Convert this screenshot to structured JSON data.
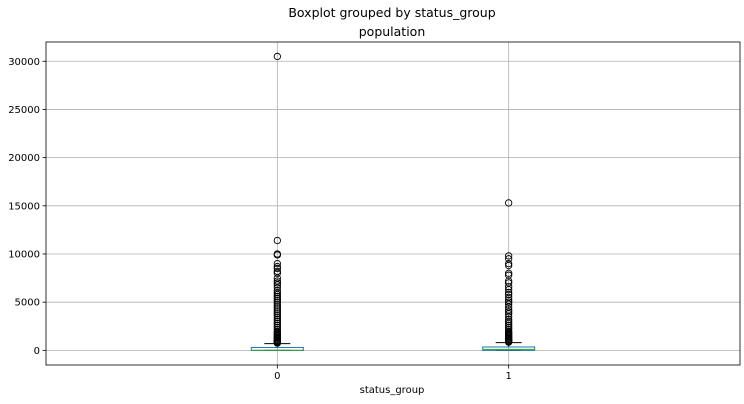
{
  "chart_data": {
    "type": "box",
    "suptitle": "Boxplot grouped by status_group",
    "title": "population",
    "xlabel": "status_group",
    "ylabel": "",
    "categories": [
      "0",
      "1"
    ],
    "ylim": [
      -1520,
      32000
    ],
    "yticks": [
      0,
      5000,
      10000,
      15000,
      20000,
      25000,
      30000
    ],
    "grid": true,
    "box_color": "#1f77b4",
    "median_color": "#2ca02c",
    "boxes": [
      {
        "category": "0",
        "q1": 0,
        "median": 0,
        "q3": 300,
        "whisker_low": 0,
        "whisker_high": 700,
        "outliers": [
          30500,
          11400,
          10000,
          9900,
          9000,
          8700,
          8500,
          8200,
          8000,
          7500,
          7200,
          7000,
          6800,
          6500,
          6200,
          6000,
          5800,
          5600,
          5400,
          5200,
          5000,
          4800,
          4600,
          4400,
          4200,
          4000,
          3800,
          3600,
          3400,
          3200,
          3000,
          2800,
          2600,
          2400,
          2200,
          2000,
          1900,
          1800,
          1700,
          1600,
          1500,
          1400,
          1300,
          1200,
          1100,
          1000,
          950,
          900,
          850,
          800,
          750
        ]
      },
      {
        "category": "1",
        "q1": 0,
        "median": 100,
        "q3": 350,
        "whisker_low": 0,
        "whisker_high": 800,
        "outliers": [
          15300,
          9800,
          9500,
          9000,
          8800,
          8000,
          7800,
          7200,
          7000,
          6600,
          6300,
          6000,
          5800,
          5500,
          5200,
          5000,
          4800,
          4500,
          4200,
          4000,
          3800,
          3500,
          3200,
          3000,
          2800,
          2600,
          2400,
          2200,
          2000,
          1900,
          1800,
          1700,
          1600,
          1500,
          1400,
          1300,
          1200,
          1100,
          1000,
          950,
          900,
          850
        ]
      }
    ]
  }
}
